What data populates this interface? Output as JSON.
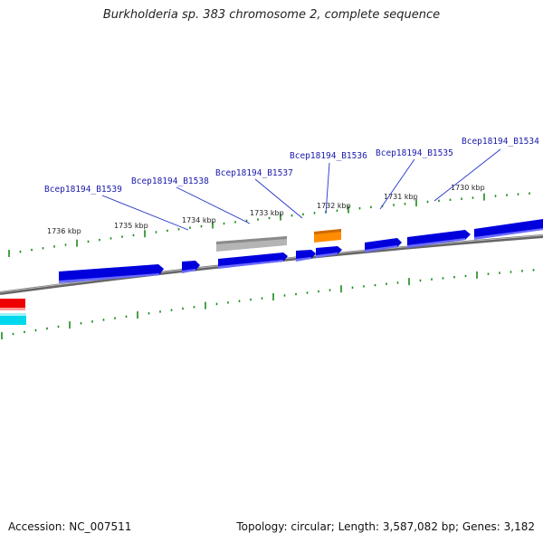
{
  "title": "Burkholderia sp. 383 chromosome 2, complete sequence",
  "footer": {
    "accession": "Accession: NC_007511",
    "summary": "Topology: circular; Length: 3,587,082 bp; Genes: 3,182"
  },
  "colors": {
    "cds": "#0000dd",
    "cds_light": "#6a6aff",
    "pseudo": "#b4b4b4",
    "highlight": "#ff8c00",
    "other_red": "#ee0000",
    "other_cyan": "#00d8ee",
    "tick": "#1a8a1a",
    "backbone": "#777777",
    "label": "#1a1aaa"
  },
  "kbp_labels": [
    "1736 kbp",
    "1735 kbp",
    "1734 kbp",
    "1733 kbp",
    "1732 kbp",
    "1731 kbp",
    "1730 kbp"
  ],
  "gene_labels": [
    "Bcep18194_B1539",
    "Bcep18194_B1538",
    "Bcep18194_B1537",
    "Bcep18194_B1536",
    "Bcep18194_B1535",
    "Bcep18194_B1534"
  ]
}
